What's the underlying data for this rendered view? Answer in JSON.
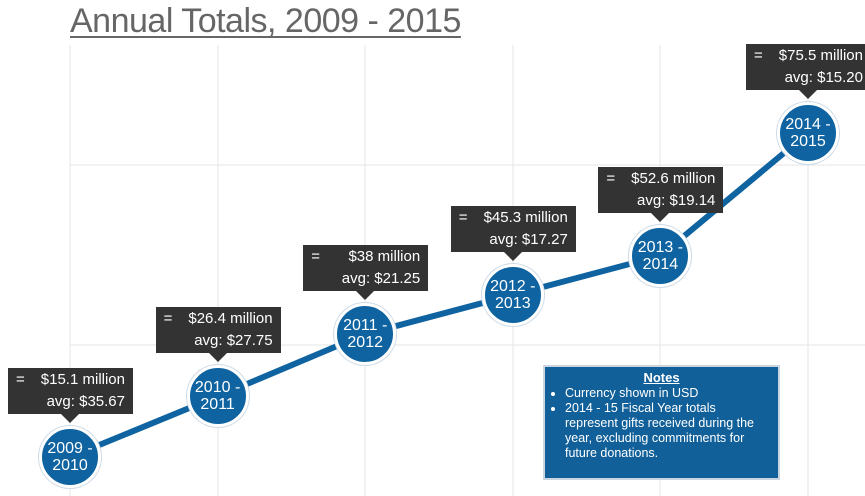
{
  "chart_data": {
    "type": "line",
    "title": "Annual Totals, 2009 - 2015",
    "categories": [
      "2009 - 2010",
      "2010 - 2011",
      "2011 - 2012",
      "2012 - 2013",
      "2013 - 2014",
      "2014 - 2015"
    ],
    "values": [
      15.1,
      26.4,
      38,
      45.3,
      52.6,
      75.5
    ],
    "value_labels": [
      "$15.1 million",
      "$26.4 million",
      "$38 million",
      "$45.3 million",
      "$52.6 million",
      "$75.5 million"
    ],
    "value_prefix": "=",
    "avg_labels": [
      "avg: $35.67",
      "avg: $27.75",
      "avg: $21.25",
      "avg: $17.27",
      "avg: $19.14",
      "avg: $15.20"
    ],
    "color": "#0e63a0"
  },
  "notes": {
    "title": "Notes",
    "items": [
      "Currency shown in USD",
      "2014 - 15 Fiscal Year totals represent gifts received during the year, excluding commitments for future donations."
    ]
  }
}
